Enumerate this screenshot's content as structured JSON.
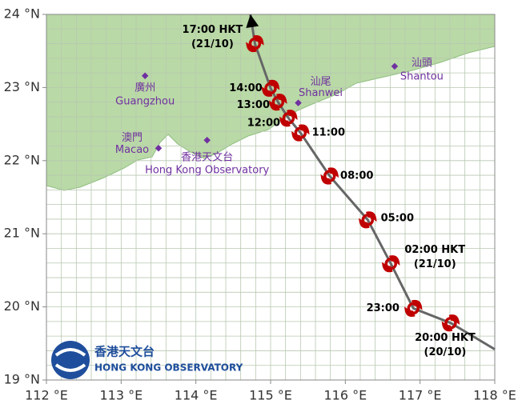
{
  "map": {
    "xlim": [
      112,
      118
    ],
    "ylim": [
      19,
      24
    ],
    "xticks": [
      {
        "value": 112,
        "label": "112 °E"
      },
      {
        "value": 113,
        "label": "113 °E"
      },
      {
        "value": 114,
        "label": "114 °E"
      },
      {
        "value": 115,
        "label": "115 °E"
      },
      {
        "value": 116,
        "label": "116 °E"
      },
      {
        "value": 117,
        "label": "117 °E"
      },
      {
        "value": 118,
        "label": "118 °E"
      }
    ],
    "yticks": [
      {
        "value": 19,
        "label": "19 °N"
      },
      {
        "value": 20,
        "label": "20 °N"
      },
      {
        "value": 21,
        "label": "21 °N"
      },
      {
        "value": 22,
        "label": "22 °N"
      },
      {
        "value": 23,
        "label": "23 °N"
      },
      {
        "value": 24,
        "label": "24 °N"
      }
    ],
    "grid": true,
    "grid_step": 0.2,
    "track_color": "#666666",
    "symbol_color": "#c00000",
    "track": [
      {
        "lon": 114.73,
        "lat": 24.0,
        "label": null
      },
      {
        "lon": 114.79,
        "lat": 23.6,
        "label": [
          "17:00 HKT",
          "(21/10)"
        ]
      },
      {
        "lon": 115.0,
        "lat": 22.99,
        "label": [
          "14:00"
        ]
      },
      {
        "lon": 115.1,
        "lat": 22.8,
        "label": [
          "13:00"
        ]
      },
      {
        "lon": 115.24,
        "lat": 22.58,
        "label": [
          "12:00"
        ]
      },
      {
        "lon": 115.4,
        "lat": 22.38,
        "label": [
          "11:00"
        ]
      },
      {
        "lon": 115.79,
        "lat": 21.79,
        "label": [
          "08:00"
        ]
      },
      {
        "lon": 116.3,
        "lat": 21.19,
        "label": [
          "05:00"
        ]
      },
      {
        "lon": 116.61,
        "lat": 20.59,
        "label": [
          "02:00 HKT",
          "(21/10)"
        ]
      },
      {
        "lon": 116.91,
        "lat": 19.98,
        "label": [
          "23:00"
        ]
      },
      {
        "lon": 117.41,
        "lat": 19.78,
        "label": [
          "20:00 HKT",
          "(20/10)"
        ]
      },
      {
        "lon": 118.0,
        "lat": 19.42,
        "label": null
      }
    ],
    "cities": [
      {
        "name_zh": "廣州",
        "name_en": "Guangzhou",
        "lon": 113.32,
        "lat": 23.16
      },
      {
        "name_zh": "澳門",
        "name_en": "Macao",
        "lon": 113.5,
        "lat": 22.17
      },
      {
        "name_zh": "香港天文台",
        "name_en": "Hong Kong Observatory",
        "lon": 114.15,
        "lat": 22.28
      },
      {
        "name_zh": "汕尾",
        "name_en": "Shanwei",
        "lon": 115.37,
        "lat": 22.79
      },
      {
        "name_zh": "汕頭",
        "name_en": "Shantou",
        "lon": 116.66,
        "lat": 23.29
      }
    ],
    "logo": {
      "name_zh": "香港天文台",
      "name_en": "HONG KONG OBSERVATORY"
    }
  }
}
